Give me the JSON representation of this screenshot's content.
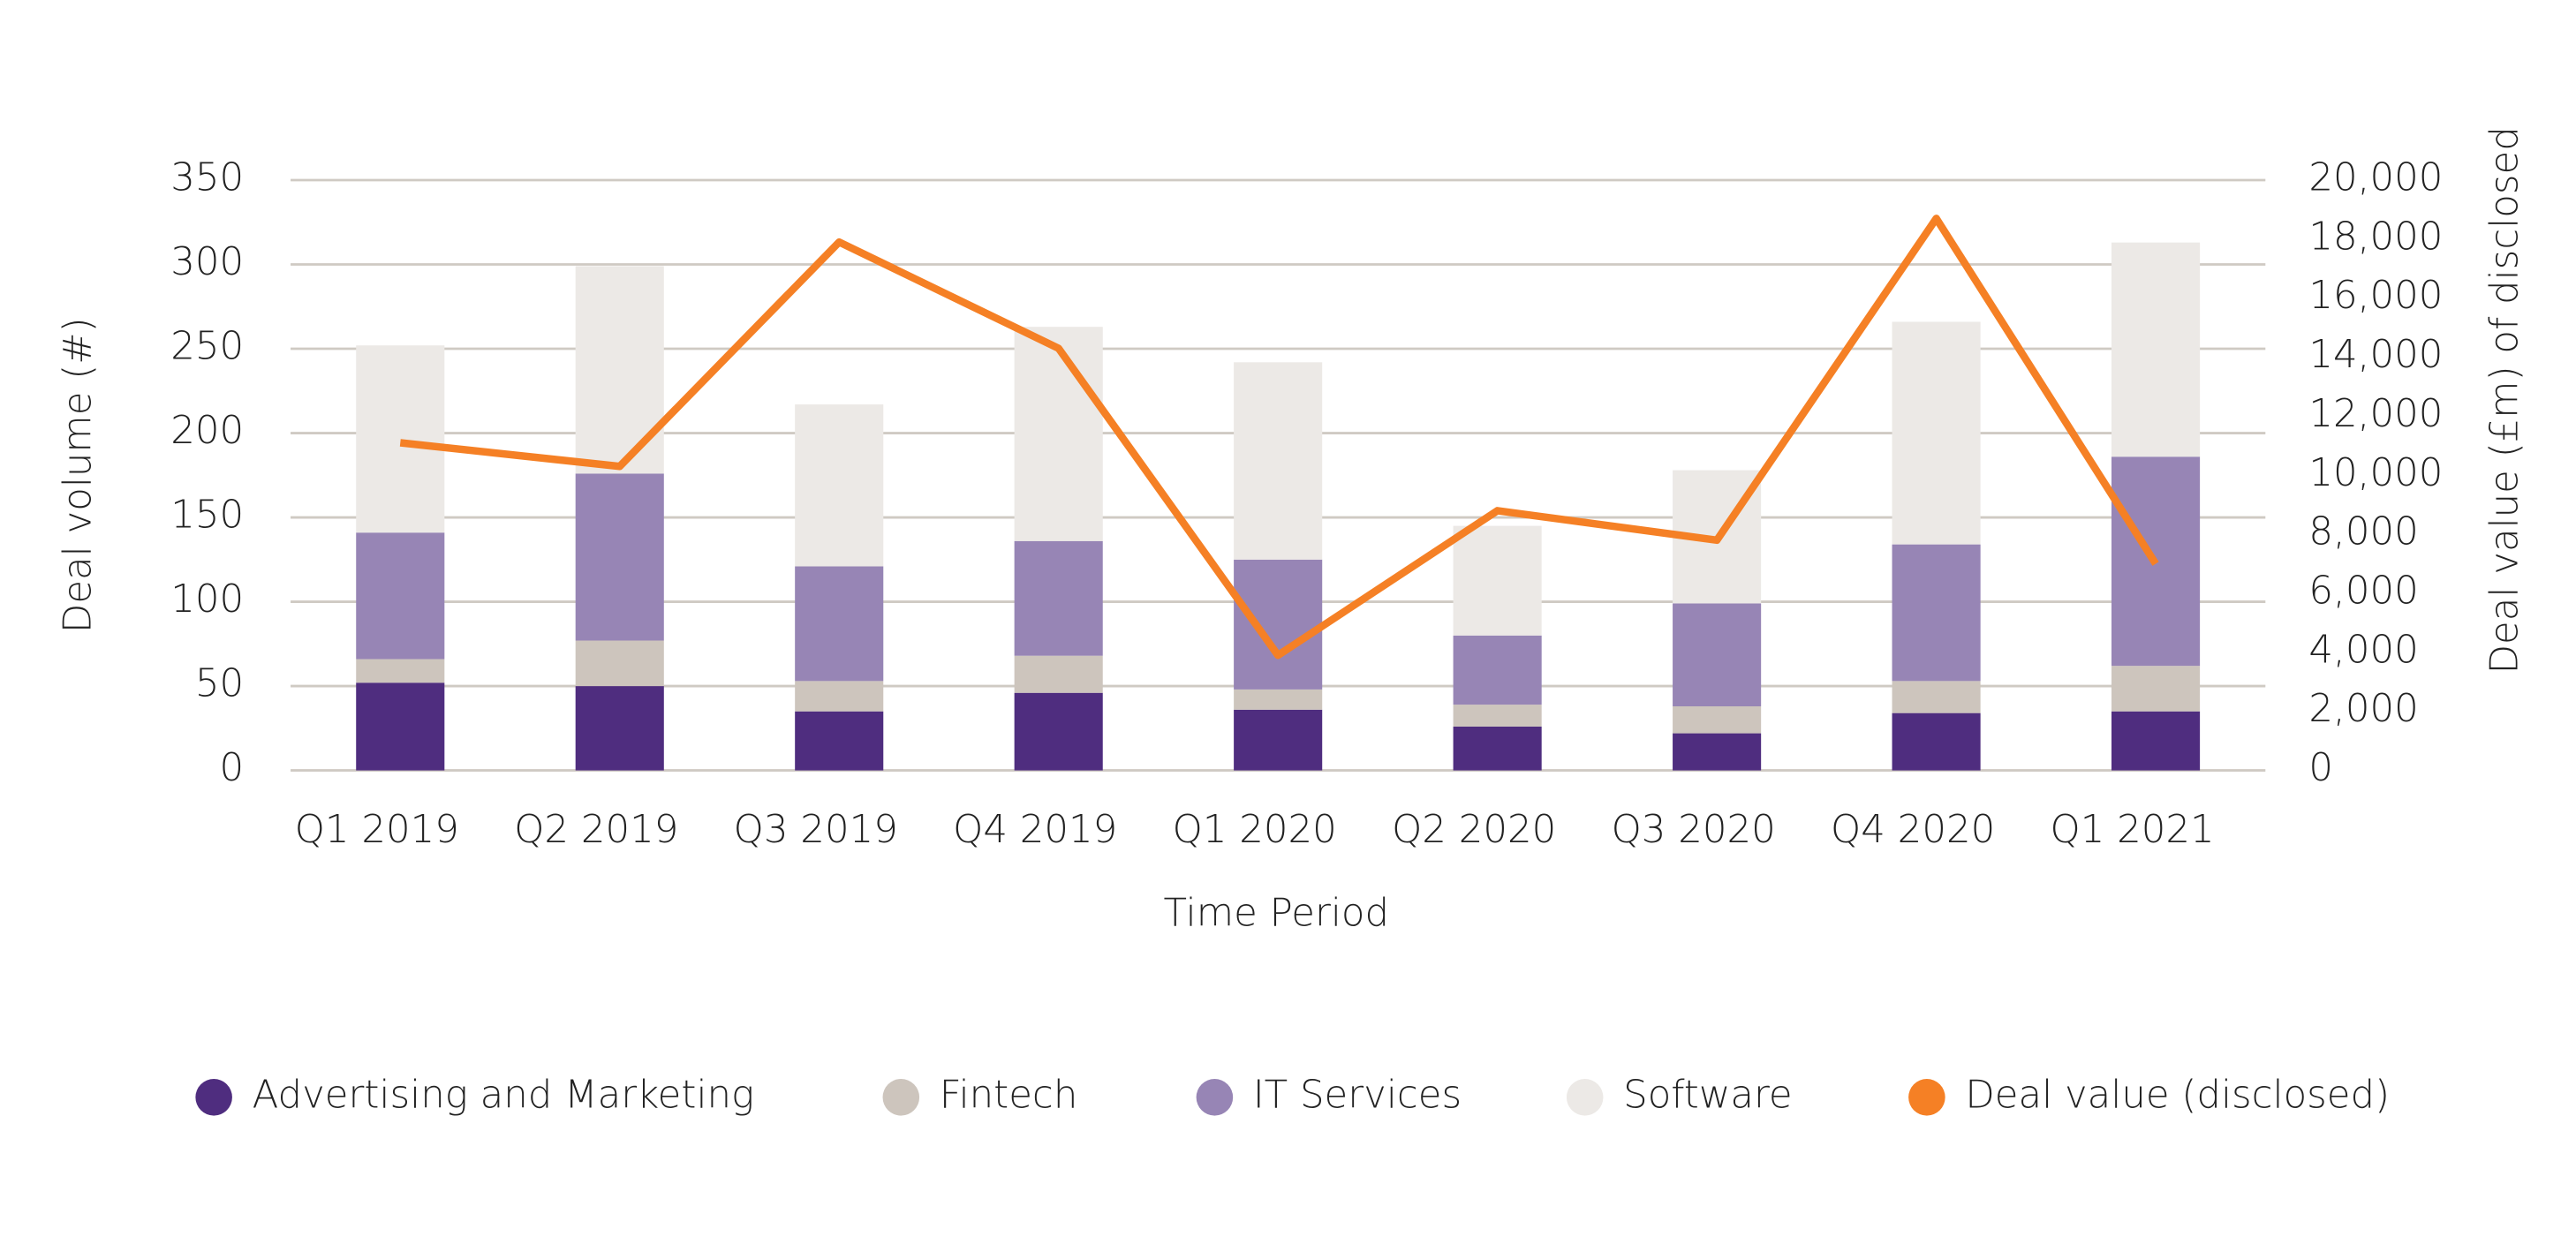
{
  "chart_data": {
    "type": "bar",
    "stacked": true,
    "x_label": "Time Period",
    "y_label": "Deal volume (#)",
    "y2_label": "Deal value (£m) of disclosed",
    "categories": [
      "Q1 2019",
      "Q2 2019",
      "Q3 2019",
      "Q4 2019",
      "Q1 2020",
      "Q2 2020",
      "Q3 2020",
      "Q4 2020",
      "Q1 2021"
    ],
    "series": [
      {
        "name": "Advertising and Marketing",
        "type": "bar",
        "color": "#4f2d7f",
        "values": [
          52,
          50,
          35,
          46,
          36,
          26,
          22,
          34,
          35
        ]
      },
      {
        "name": "Fintech",
        "type": "bar",
        "color": "#cdc5bd",
        "values": [
          14,
          27,
          18,
          22,
          12,
          13,
          16,
          19,
          27
        ]
      },
      {
        "name": "IT Services",
        "type": "bar",
        "color": "#9785b5",
        "values": [
          75,
          99,
          68,
          68,
          77,
          41,
          61,
          81,
          124
        ]
      },
      {
        "name": "Software",
        "type": "bar",
        "color": "#ece9e6",
        "values": [
          111,
          123,
          96,
          127,
          117,
          65,
          79,
          132,
          127
        ]
      },
      {
        "name": "Deal value (disclosed)",
        "type": "line",
        "axis": "y2",
        "color": "#f58025",
        "values": [
          11100,
          10300,
          17900,
          14300,
          3900,
          8800,
          7800,
          18700,
          7000
        ]
      }
    ],
    "ylim": [
      0,
      350
    ],
    "yticks": [
      0,
      50,
      100,
      150,
      200,
      250,
      300,
      350
    ],
    "y2lim": [
      0,
      20000
    ],
    "y2ticks": [
      0,
      {
        "value": 2000,
        "label": "2,000"
      },
      {
        "value": 4000,
        "label": "4,000"
      },
      {
        "value": 6000,
        "label": "6,000"
      },
      {
        "value": 8000,
        "label": "8,000"
      },
      {
        "value": 10000,
        "label": "10,000"
      },
      {
        "value": 12000,
        "label": "12,000"
      },
      {
        "value": 14000,
        "label": "14,000"
      },
      {
        "value": 16000,
        "label": "16,000"
      },
      {
        "value": 18000,
        "label": "18,000"
      },
      {
        "value": 20000,
        "label": "20,000"
      }
    ],
    "grid": true,
    "legend": "bottom"
  }
}
